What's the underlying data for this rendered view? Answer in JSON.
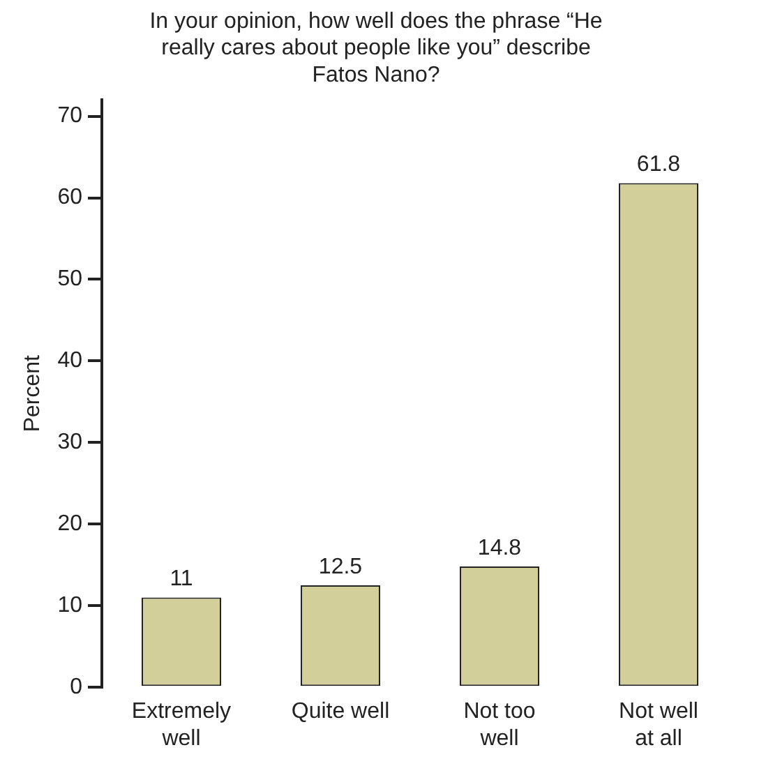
{
  "chart_data": {
    "type": "bar",
    "title": "In your opinion, how well does the phrase “He really cares about people like you” describe Fatos Nano?",
    "ylabel": "Percent",
    "categories": [
      "Extremely well",
      "Quite well",
      "Not too well",
      "Not well at all"
    ],
    "values": [
      11,
      12.5,
      14.8,
      61.8
    ],
    "color": "#d3cf9a",
    "ylim": [
      0,
      72
    ],
    "yticks": [
      0,
      10,
      20,
      30,
      40,
      50,
      60,
      70
    ],
    "grid": false,
    "legend": false,
    "data_labels": true
  }
}
